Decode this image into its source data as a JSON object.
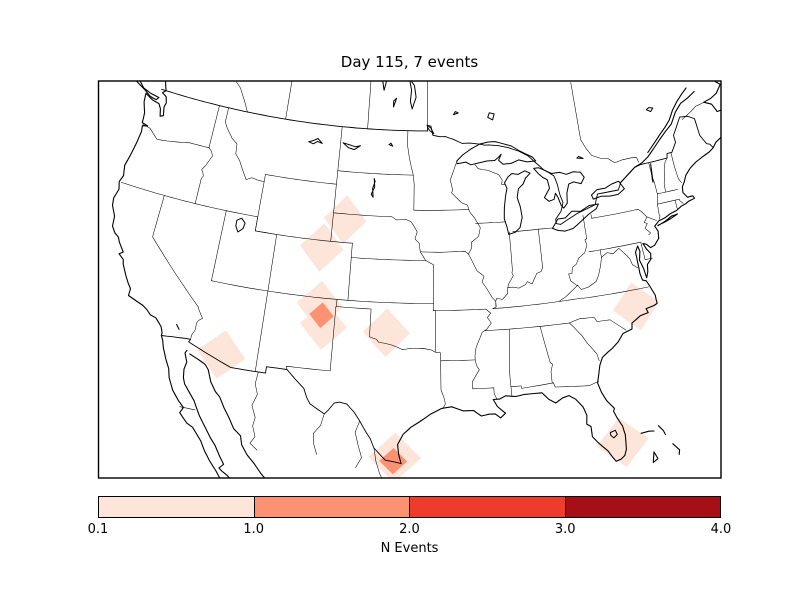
{
  "figure": {
    "title": "Day 115, 7 events",
    "background_color": "#ffffff"
  },
  "colorbar": {
    "label": "N Events",
    "tick_labels": [
      "0.1",
      "1.0",
      "2.0",
      "3.0",
      "4.0"
    ],
    "segment_colors": [
      "#fee5d9",
      "#fc9272",
      "#ef3b2c",
      "#a50f15"
    ]
  },
  "chart_data": {
    "type": "heatmap",
    "subtype": "geographic-event-density-map",
    "title": "Day 115, 7 events",
    "day": 115,
    "event_count": 7,
    "region": "North America (CONUS with southern Canada, northern Mexico, Cuba)",
    "colorbar_label": "N Events",
    "colorbar_boundaries": [
      0.1,
      1.0,
      2.0,
      3.0,
      4.0
    ],
    "colorbar_colors": [
      "#fee5d9",
      "#fc9272",
      "#ef3b2c",
      "#a50f15"
    ],
    "cell_half_extent_deg": {
      "lon": 2.0,
      "lat": 1.7
    },
    "overlap_half_extent_deg": {
      "lon": 1.05,
      "lat": 0.9
    },
    "cells": [
      {
        "name": "nebraska-panhandle",
        "lon": -102.9,
        "lat": 42.6,
        "value_bin": "0.1-1.0"
      },
      {
        "name": "north-central-colorado",
        "lon": -104.8,
        "lat": 40.5,
        "value_bin": "0.1-1.0"
      },
      {
        "name": "colorado-new-mexico-border-north",
        "lon": -104.45,
        "lat": 36.5,
        "value_bin": "0.1-1.0"
      },
      {
        "name": "northeast-new-mexico-south",
        "lon": -103.95,
        "lat": 35.1,
        "value_bin": "0.1-1.0"
      },
      {
        "name": "southwest-oklahoma",
        "lon": -98.6,
        "lat": 34.9,
        "value_bin": "0.1-1.0"
      },
      {
        "name": "southern-arizona-sonora",
        "lon": -112.0,
        "lat": 32.1,
        "value_bin": "0.1-1.0"
      },
      {
        "name": "north-carolina-coast",
        "lon": -77.3,
        "lat": 35.4,
        "value_bin": "0.1-1.0"
      },
      {
        "name": "south-florida",
        "lon": -80.3,
        "lat": 26.3,
        "value_bin": "0.1-1.0"
      },
      {
        "name": "south-texas-gulf-coast",
        "lon": -97.6,
        "lat": 26.3,
        "value_bin": "0.1-1.0"
      }
    ],
    "overlap_cells": [
      {
        "name": "northeast-new-mexico-overlap",
        "lon": -104.2,
        "lat": 35.8,
        "value_bin": "1.0-2.0"
      },
      {
        "name": "south-texas-overlap",
        "lon": -97.7,
        "lat": 26.05,
        "value_bin": "1.0-2.0"
      }
    ],
    "projection": {
      "name": "lambert-conformal-conic",
      "lat_1": 33,
      "lat_2": 45,
      "lon_0": -95,
      "corners": {
        "llcrnrlon": -119,
        "llcrnrlat": 22,
        "urcrnrlon": -64,
        "urcrnrlat": 49
      }
    }
  }
}
